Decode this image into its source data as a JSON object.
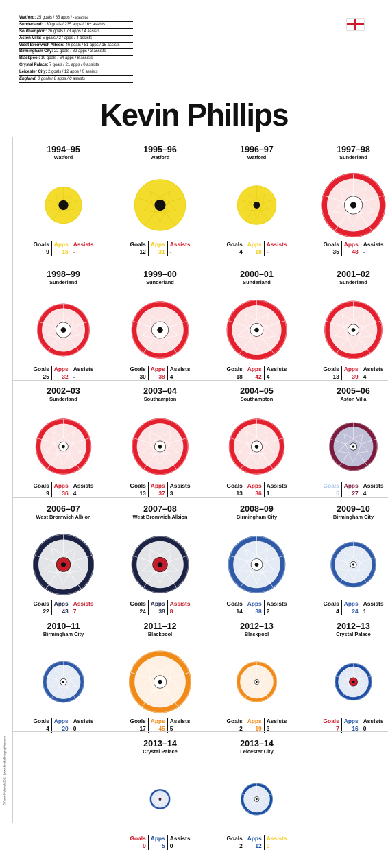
{
  "summary": [
    {
      "club": "Watford:",
      "text": "25 goals / 65 apps / - assists"
    },
    {
      "club": "Sunderland:",
      "text": "130 goals / 235 apps / 16+ assists"
    },
    {
      "club": "Southampton:",
      "text": "26 goals / 73 apps / 4 assists"
    },
    {
      "club": "Aston Villa:",
      "text": "5 goals / 27 apps / 4 assists"
    },
    {
      "club": "West Bromwich Albion:",
      "text": "46 goals / 81 apps / 15 assists"
    },
    {
      "club": "Birmingham City:",
      "text": "22 goals / 82 apps / 3 assists"
    },
    {
      "club": "Blackpool:",
      "text": "19 goals / 64 apps / 8 assists"
    },
    {
      "club": "Crystal Palace:",
      "text": "7 goals / 21 apps / 0 assists"
    },
    {
      "club": "Leicester City:",
      "text": "2 goals / 12 apps / 0 assists"
    },
    {
      "club": "England:",
      "text": "0 goals / 8 apps / 0 assists"
    }
  ],
  "title": "Kevin Phillips",
  "credit": "© Pawel Adamek 2023 | www.footballinfographics.com",
  "labels": {
    "goals": "Goals",
    "apps": "Apps",
    "assists": "Assists"
  },
  "palette": {
    "watford": {
      "primary": "#f4dc2c",
      "secondary": "#ffffff",
      "center": "#111111",
      "line": "#e0c410"
    },
    "sunderland": {
      "primary": "#e4202f",
      "secondary": "#ffffff",
      "center": "#ffffff",
      "line": "#ffffff"
    },
    "southampton": {
      "primary": "#e4202f",
      "secondary": "#ffffff",
      "center": "#ffffff",
      "line": "#ffffff"
    },
    "aston_villa": {
      "primary": "#7a1a3c",
      "secondary": "#c9d7ee",
      "center": "#ffffff",
      "line": "#ffffff"
    },
    "wba": {
      "primary": "#1c2244",
      "secondary": "#ffffff",
      "center": "#c41e2b",
      "line": "#ffffff"
    },
    "birmingham": {
      "primary": "#2f5aa8",
      "secondary": "#ffffff",
      "center": "#ffffff",
      "line": "#ffffff"
    },
    "blackpool": {
      "primary": "#f08a19",
      "secondary": "#ffffff",
      "center": "#ffffff",
      "line": "#ffffff"
    },
    "crystal_palace": {
      "primary": "#1f4fa5",
      "secondary": "#ffffff",
      "center": "#d01c2c",
      "line": "#ffffff"
    },
    "leicester": {
      "primary": "#1a4fa2",
      "secondary": "#ffffff",
      "center": "#ffffff",
      "line": "#ffffff"
    }
  },
  "seasons": [
    {
      "season": "1994–95",
      "club": "Watford",
      "palette": "watford",
      "goals": 9,
      "apps": 16,
      "assists": "-",
      "colors": {
        "goals": "#111111",
        "apps": "#f2cc19",
        "assists": "#d11a2a"
      }
    },
    {
      "season": "1995–96",
      "club": "Watford",
      "palette": "watford",
      "goals": 12,
      "apps": 31,
      "assists": "-",
      "colors": {
        "goals": "#111111",
        "apps": "#f2cc19",
        "assists": "#d11a2a"
      }
    },
    {
      "season": "1996–97",
      "club": "Watford",
      "palette": "watford",
      "goals": 4,
      "apps": 18,
      "assists": "-",
      "colors": {
        "goals": "#111111",
        "apps": "#f2cc19",
        "assists": "#d11a2a"
      }
    },
    {
      "season": "1997–98",
      "club": "Sunderland",
      "palette": "sunderland",
      "goals": 35,
      "apps": 48,
      "assists": "-",
      "colors": {
        "goals": "#111111",
        "apps": "#d11a2a",
        "assists": "#111111"
      }
    },
    {
      "season": "1998–99",
      "club": "Sunderland",
      "palette": "sunderland",
      "goals": 25,
      "apps": 32,
      "assists": "-",
      "colors": {
        "goals": "#111111",
        "apps": "#d11a2a",
        "assists": "#111111"
      }
    },
    {
      "season": "1999–00",
      "club": "Sunderland",
      "palette": "sunderland",
      "goals": 30,
      "apps": 38,
      "assists": "4",
      "colors": {
        "goals": "#111111",
        "apps": "#d11a2a",
        "assists": "#111111"
      }
    },
    {
      "season": "2000–01",
      "club": "Sunderland",
      "palette": "sunderland",
      "goals": 18,
      "apps": 42,
      "assists": "4",
      "colors": {
        "goals": "#111111",
        "apps": "#d11a2a",
        "assists": "#111111"
      }
    },
    {
      "season": "2001–02",
      "club": "Sunderland",
      "palette": "sunderland",
      "goals": 13,
      "apps": 39,
      "assists": "4",
      "colors": {
        "goals": "#111111",
        "apps": "#d11a2a",
        "assists": "#111111"
      }
    },
    {
      "season": "2002–03",
      "club": "Sunderland",
      "palette": "sunderland",
      "goals": 9,
      "apps": 36,
      "assists": "4",
      "colors": {
        "goals": "#111111",
        "apps": "#d11a2a",
        "assists": "#111111"
      }
    },
    {
      "season": "2003–04",
      "club": "Southampton",
      "palette": "southampton",
      "goals": 13,
      "apps": 37,
      "assists": "3",
      "colors": {
        "goals": "#111111",
        "apps": "#d11a2a",
        "assists": "#111111"
      }
    },
    {
      "season": "2004–05",
      "club": "Southampton",
      "palette": "southampton",
      "goals": 13,
      "apps": 36,
      "assists": "1",
      "colors": {
        "goals": "#111111",
        "apps": "#d11a2a",
        "assists": "#111111"
      }
    },
    {
      "season": "2005–06",
      "club": "Aston Villa",
      "palette": "aston_villa",
      "goals": 5,
      "apps": 27,
      "assists": "4",
      "colors": {
        "goals": "#a6c3e6",
        "apps": "#7a1a3c",
        "assists": "#111111"
      }
    },
    {
      "season": "2006–07",
      "club": "West Bromwich Albion",
      "palette": "wba",
      "goals": 22,
      "apps": 43,
      "assists": "7",
      "colors": {
        "goals": "#111111",
        "apps": "#1c2244",
        "assists": "#c41e2b"
      }
    },
    {
      "season": "2007–08",
      "club": "West Bromwich Albion",
      "palette": "wba",
      "goals": 24,
      "apps": 38,
      "assists": "8",
      "colors": {
        "goals": "#111111",
        "apps": "#1c2244",
        "assists": "#c41e2b"
      }
    },
    {
      "season": "2008–09",
      "club": "Birmingham City",
      "palette": "birmingham",
      "goals": 14,
      "apps": 38,
      "assists": "2",
      "colors": {
        "goals": "#111111",
        "apps": "#2f5aa8",
        "assists": "#111111"
      }
    },
    {
      "season": "2009–10",
      "club": "Birmingham City",
      "palette": "birmingham",
      "goals": 4,
      "apps": 24,
      "assists": "1",
      "colors": {
        "goals": "#111111",
        "apps": "#2f5aa8",
        "assists": "#111111"
      }
    },
    {
      "season": "2010–11",
      "club": "Birmingham City",
      "palette": "birmingham",
      "goals": 4,
      "apps": 20,
      "assists": "0",
      "colors": {
        "goals": "#111111",
        "apps": "#2f5aa8",
        "assists": "#111111"
      }
    },
    {
      "season": "2011–12",
      "club": "Blackpool",
      "palette": "blackpool",
      "goals": 17,
      "apps": 45,
      "assists": "5",
      "colors": {
        "goals": "#111111",
        "apps": "#f08a19",
        "assists": "#111111"
      }
    },
    {
      "season": "2012–13",
      "club": "Blackpool",
      "palette": "blackpool",
      "goals": 2,
      "apps": 19,
      "assists": "3",
      "colors": {
        "goals": "#111111",
        "apps": "#f08a19",
        "assists": "#111111"
      }
    },
    {
      "season": "2012–13",
      "club": "Crystal Palace",
      "palette": "crystal_palace",
      "goals": 7,
      "apps": 16,
      "assists": "0",
      "colors": {
        "goals": "#d11a2a",
        "apps": "#1f4fa5",
        "assists": "#111111"
      }
    },
    {
      "season": "2013–14",
      "club": "Crystal Palace",
      "palette": "crystal_palace",
      "goals": 0,
      "apps": 5,
      "assists": "0",
      "colors": {
        "goals": "#d11a2a",
        "apps": "#1f4fa5",
        "assists": "#111111"
      }
    },
    {
      "season": "2013–14",
      "club": "Leicester City",
      "palette": "leicester",
      "goals": 2,
      "apps": 12,
      "assists": "0",
      "colors": {
        "goals": "#111111",
        "apps": "#1a4fa2",
        "assists": "#f2cc19"
      }
    }
  ]
}
